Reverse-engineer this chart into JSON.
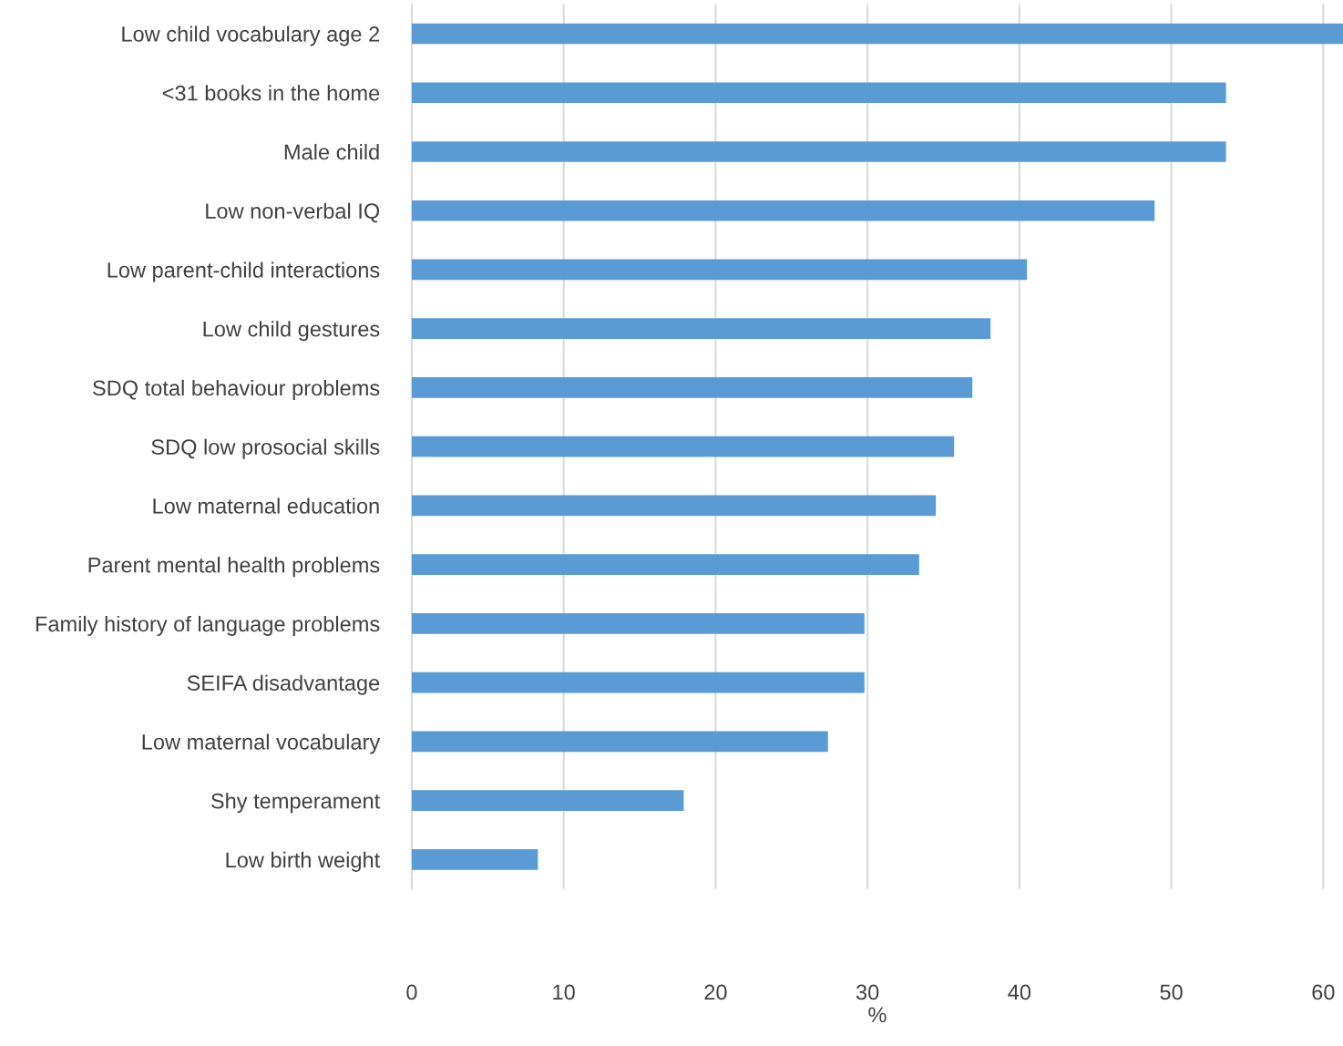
{
  "chart_data": {
    "type": "bar",
    "orientation": "horizontal",
    "xlabel": "%",
    "categories": [
      "Low child vocabulary age 2",
      "<31 books in the home",
      "Male child",
      "Low non-verbal IQ",
      "Low parent-child interactions",
      "Low child gestures",
      "SDQ total behaviour problems",
      "SDQ low prosocial skills",
      "Low maternal education",
      "Parent mental health problems",
      "Family history of language problems",
      "SEIFA disadvantage",
      "Low maternal vocabulary",
      "Shy temperament",
      "Low birth weight"
    ],
    "values": [
      61.3,
      53.6,
      53.6,
      48.9,
      40.5,
      38.1,
      36.9,
      35.7,
      34.5,
      33.4,
      29.8,
      29.8,
      27.4,
      17.9,
      8.3
    ],
    "color": "#5b9bd5",
    "xlim": [
      0,
      61.3
    ],
    "xticks": [
      0,
      10,
      20,
      30,
      40,
      50,
      60
    ],
    "grid": "x",
    "legend": false
  }
}
